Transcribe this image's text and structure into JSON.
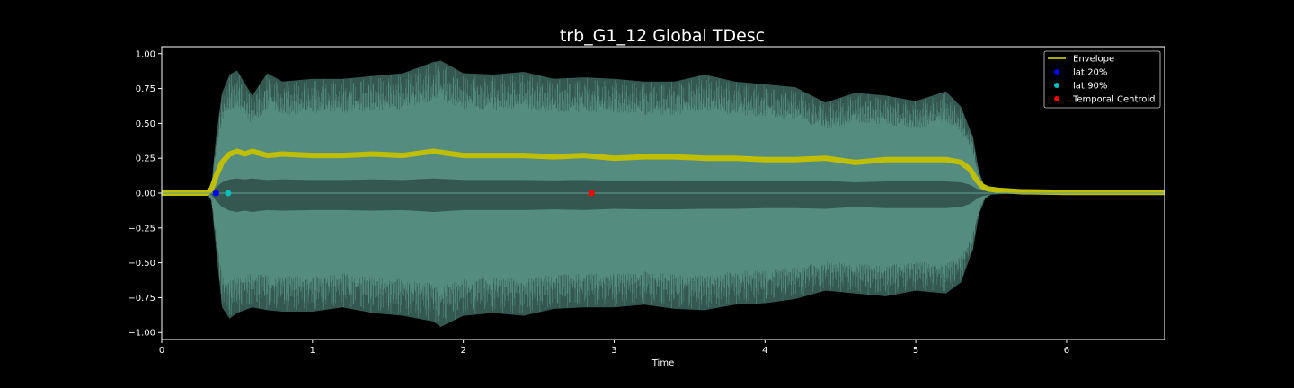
{
  "chart_data": {
    "type": "line",
    "title": "trb_G1_12 Global TDesc",
    "xlabel": "Time",
    "ylabel": "",
    "xlim": [
      0,
      6.65
    ],
    "ylim": [
      -1.05,
      1.05
    ],
    "xticks": [
      0,
      1,
      2,
      3,
      4,
      5,
      6
    ],
    "xtick_labels": [
      "0",
      "1",
      "2",
      "3",
      "4",
      "5",
      "6"
    ],
    "yticks": [
      1.0,
      0.75,
      0.5,
      0.25,
      0.0,
      -0.25,
      -0.5,
      -0.75,
      -1.0
    ],
    "ytick_labels": [
      "1.00",
      "0.75",
      "0.50",
      "0.25",
      "0.00",
      "−0.25",
      "−0.50",
      "−0.75",
      "−1.00"
    ],
    "grid": false,
    "legend_position": "top-right",
    "colors": {
      "background": "#000000",
      "waveform": "#5f9e8f",
      "envelope": "#bfbf00",
      "lat20": "#0000ff",
      "lat90": "#00bfbf",
      "centroid": "#ff0000",
      "axes": "#ffffff"
    },
    "waveform": {
      "name": "waveform",
      "x": [
        0,
        0.3,
        0.33,
        0.36,
        0.4,
        0.45,
        0.5,
        0.6,
        0.7,
        0.8,
        1.0,
        1.2,
        1.4,
        1.6,
        1.8,
        1.85,
        2.0,
        2.2,
        2.4,
        2.6,
        2.8,
        3.0,
        3.2,
        3.4,
        3.6,
        3.8,
        4.0,
        4.2,
        4.4,
        4.6,
        4.8,
        5.0,
        5.2,
        5.3,
        5.38,
        5.42,
        5.46,
        5.5,
        5.6,
        5.8,
        6.0,
        6.3,
        6.65
      ],
      "upper": [
        0,
        0,
        0.06,
        0.4,
        0.72,
        0.85,
        0.88,
        0.7,
        0.86,
        0.8,
        0.82,
        0.82,
        0.84,
        0.86,
        0.94,
        0.95,
        0.86,
        0.85,
        0.87,
        0.82,
        0.83,
        0.82,
        0.8,
        0.8,
        0.85,
        0.8,
        0.78,
        0.76,
        0.65,
        0.72,
        0.7,
        0.66,
        0.73,
        0.62,
        0.4,
        0.15,
        0.04,
        0.01,
        0.005,
        0.003,
        0.002,
        0.002,
        0.002
      ],
      "lower": [
        0,
        0,
        -0.06,
        -0.4,
        -0.82,
        -0.9,
        -0.86,
        -0.82,
        -0.84,
        -0.85,
        -0.85,
        -0.82,
        -0.86,
        -0.88,
        -0.92,
        -0.96,
        -0.88,
        -0.86,
        -0.88,
        -0.83,
        -0.82,
        -0.82,
        -0.8,
        -0.83,
        -0.84,
        -0.8,
        -0.79,
        -0.76,
        -0.7,
        -0.72,
        -0.74,
        -0.7,
        -0.72,
        -0.64,
        -0.4,
        -0.15,
        -0.04,
        -0.01,
        -0.005,
        -0.003,
        -0.002,
        -0.002,
        -0.002
      ]
    },
    "series": [
      {
        "name": "Envelope",
        "x": [
          0,
          0.3,
          0.33,
          0.36,
          0.4,
          0.45,
          0.5,
          0.55,
          0.6,
          0.7,
          0.8,
          1.0,
          1.2,
          1.4,
          1.6,
          1.8,
          2.0,
          2.2,
          2.4,
          2.6,
          2.8,
          3.0,
          3.2,
          3.4,
          3.6,
          3.8,
          4.0,
          4.2,
          4.4,
          4.6,
          4.8,
          5.0,
          5.2,
          5.3,
          5.36,
          5.4,
          5.44,
          5.48,
          5.55,
          5.7,
          6.0,
          6.65
        ],
        "y": [
          0,
          0,
          0.03,
          0.12,
          0.22,
          0.28,
          0.3,
          0.28,
          0.3,
          0.27,
          0.28,
          0.27,
          0.27,
          0.28,
          0.27,
          0.3,
          0.27,
          0.27,
          0.27,
          0.26,
          0.27,
          0.25,
          0.26,
          0.26,
          0.25,
          0.25,
          0.24,
          0.24,
          0.25,
          0.22,
          0.24,
          0.24,
          0.24,
          0.22,
          0.17,
          0.1,
          0.05,
          0.03,
          0.02,
          0.01,
          0.005,
          0.005
        ]
      }
    ],
    "markers": [
      {
        "name": "lat:20%",
        "x": 0.36,
        "y": 0.0
      },
      {
        "name": "lat:90%",
        "x": 0.44,
        "y": 0.0
      },
      {
        "name": "Temporal Centroid",
        "x": 2.85,
        "y": 0.0
      }
    ],
    "legend": [
      {
        "label": "Envelope",
        "kind": "line",
        "color_key": "envelope"
      },
      {
        "label": "lat:20%",
        "kind": "dot",
        "color_key": "lat20"
      },
      {
        "label": "lat:90%",
        "kind": "dot",
        "color_key": "lat90"
      },
      {
        "label": "Temporal Centroid",
        "kind": "dot",
        "color_key": "centroid"
      }
    ]
  }
}
